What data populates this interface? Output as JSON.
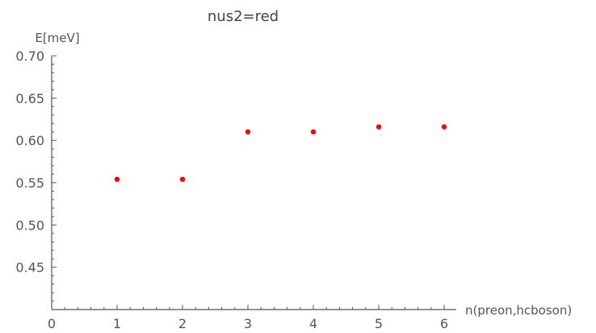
{
  "chart_data": {
    "type": "scatter",
    "title": "nus2=red",
    "xlabel": "n(preon,hcboson)",
    "ylabel": "E[meV]",
    "x": [
      1,
      2,
      3,
      4,
      5,
      6
    ],
    "y": [
      0.554,
      0.554,
      0.61,
      0.61,
      0.616,
      0.616
    ],
    "xlim": [
      0,
      6.2
    ],
    "ylim": [
      0.4,
      0.7
    ],
    "x_ticks": [
      "0",
      "1",
      "2",
      "3",
      "4",
      "5",
      "6"
    ],
    "y_ticks": [
      "0.45",
      "0.50",
      "0.55",
      "0.60",
      "0.65",
      "0.70"
    ],
    "point_color": "#ff0000",
    "axis_color": "#555555",
    "grid": false
  }
}
